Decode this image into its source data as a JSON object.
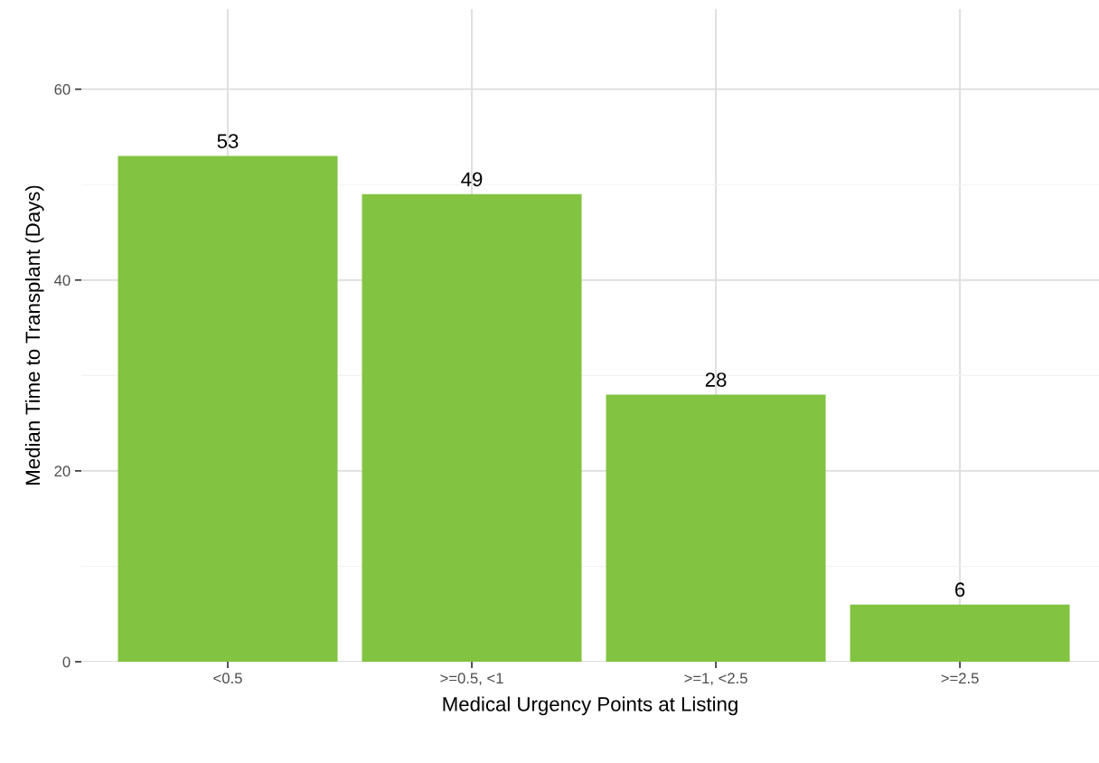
{
  "chart_data": {
    "type": "bar",
    "xlabel": "Medical Urgency Points at Listing",
    "ylabel": "Median Time to Transplant (Days)",
    "categories": [
      "<0.5",
      ">=0.5, <1",
      ">=1, <2.5",
      ">=2.5"
    ],
    "values": [
      53,
      49,
      28,
      6
    ],
    "color": "#82c341",
    "ylim": [
      0,
      68.4
    ],
    "yticks": [
      0,
      20,
      40,
      60
    ],
    "grid": true,
    "data_labels": true
  }
}
